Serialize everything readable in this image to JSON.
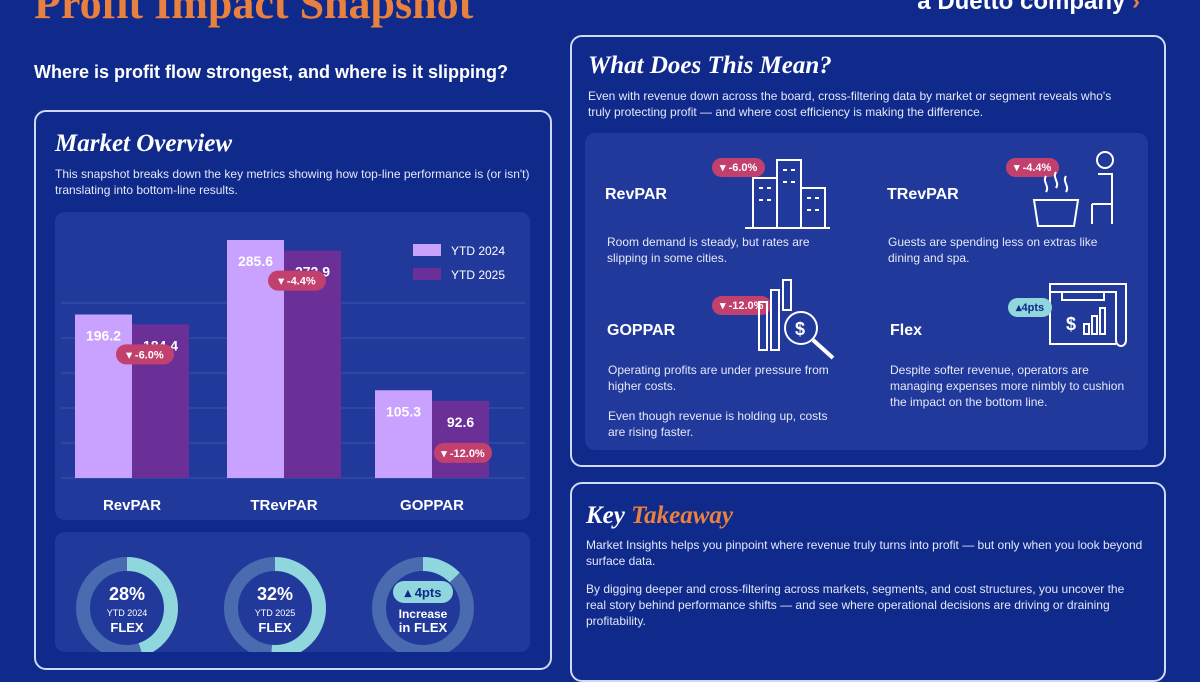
{
  "header": {
    "title": "Profit Impact Snapshot",
    "logo_text": "a Duetto company",
    "subtitle": "Where is profit flow strongest, and where is it slipping?"
  },
  "market": {
    "title": "Market Overview",
    "description": "This snapshot breaks down the key metrics showing how top-line performance is (or isn't) translating into bottom-line results."
  },
  "colors": {
    "ytd2024": "#c9a2ff",
    "ytd2025": "#6b2f98",
    "badge": "#c2406e",
    "flex": "#8fd6dd",
    "accent": "#e8803f"
  },
  "chart_data": {
    "type": "bar",
    "categories": [
      "RevPAR",
      "TRevPAR",
      "GOPPAR"
    ],
    "series": [
      {
        "name": "YTD 2024",
        "values": [
          196.2,
          285.6,
          105.3
        ]
      },
      {
        "name": "YTD 2025",
        "values": [
          184.4,
          272.9,
          92.6
        ]
      }
    ],
    "changes": [
      "▾ -6.0%",
      "▾ -4.4%",
      "▾ -12.0%"
    ],
    "legend": "top-right",
    "ylim": [
      0,
      300
    ],
    "grid": true
  },
  "flex": [
    {
      "value": "28%",
      "fraction": 0.28,
      "line1": "YTD 2024",
      "line2": "FLEX"
    },
    {
      "value": "32%",
      "fraction": 0.32,
      "line1": "YTD 2025",
      "line2": "FLEX"
    },
    {
      "value": "▴ 4pts",
      "fraction": 0.08,
      "line1": "Increase",
      "line2": "in FLEX"
    }
  ],
  "meaning": {
    "title": "What Does This Mean?",
    "intro": "Even with revenue down across the board, cross-filtering data by market or segment reveals who's truly protecting profit — and where cost efficiency is making the difference.",
    "items": [
      {
        "label": "RevPAR",
        "badge": "▾ -6.0%",
        "text": "Room demand is steady, but rates are slipping in some cities."
      },
      {
        "label": "TRevPAR",
        "badge": "▾ -4.4%",
        "text": "Guests are spending less on extras like dining and spa."
      },
      {
        "label": "GOPPAR",
        "badge": "▾ -12.0%",
        "text": "Operating profits are under pressure from higher costs.",
        "text2": "Even though revenue is holding up, costs are rising faster."
      },
      {
        "label": "Flex",
        "badge": "▴4pts",
        "text": "Despite softer revenue, operators are managing expenses more nimbly to cushion the impact on the bottom line."
      }
    ]
  },
  "takeaway": {
    "title_a": "Key ",
    "title_b": "Takeaway",
    "p1": "Market Insights helps you pinpoint where revenue truly turns into profit — but only when you look beyond surface data.",
    "p2": "By digging deeper and cross-filtering across markets, segments, and cost structures, you uncover the real story behind performance shifts — and see where operational decisions are driving or draining profitability."
  }
}
